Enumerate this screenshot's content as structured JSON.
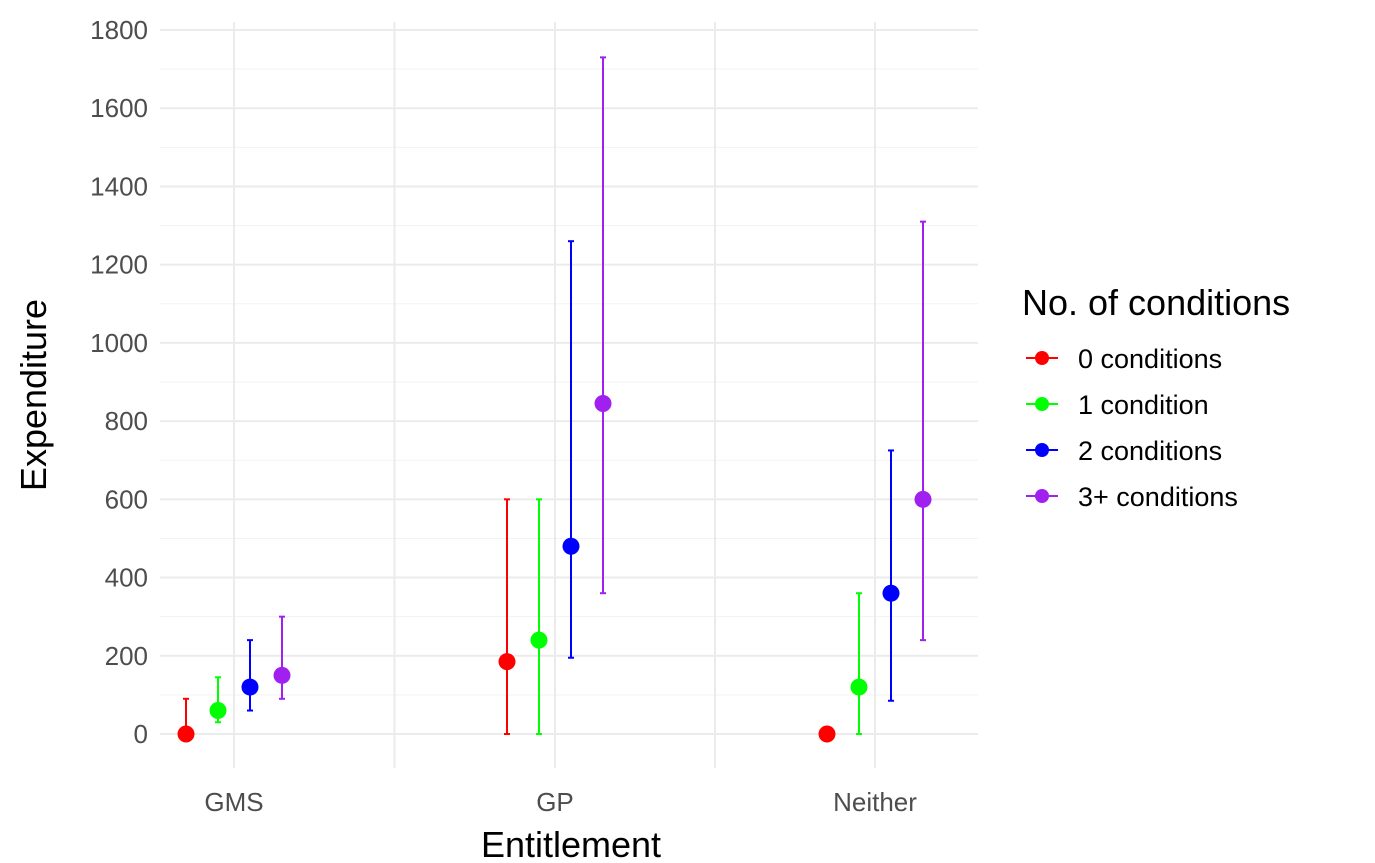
{
  "chart_data": {
    "type": "scatter",
    "subtype": "point-with-errorbars (dodged)",
    "xlabel": "Entitlement",
    "ylabel": "Expenditure",
    "categories": [
      "GMS",
      "GP",
      "Neither"
    ],
    "ylim": [
      -80,
      1800
    ],
    "yticks": [
      0,
      200,
      400,
      600,
      800,
      1000,
      1200,
      1400,
      1600,
      1800
    ],
    "grid": true,
    "legend": {
      "title": "No. of conditions",
      "position": "right"
    },
    "series": [
      {
        "name": "0 conditions",
        "color": "#ff0000",
        "values": [
          0,
          185,
          0
        ],
        "lower": [
          0,
          0,
          0
        ],
        "upper": [
          90,
          600,
          0
        ]
      },
      {
        "name": "1 condition",
        "color": "#00ff00",
        "values": [
          60,
          240,
          120
        ],
        "lower": [
          30,
          0,
          0
        ],
        "upper": [
          145,
          600,
          360
        ]
      },
      {
        "name": "2 conditions",
        "color": "#0000ff",
        "values": [
          120,
          480,
          360
        ],
        "lower": [
          60,
          195,
          85
        ],
        "upper": [
          240,
          1260,
          725
        ]
      },
      {
        "name": "3+ conditions",
        "color": "#a020f0",
        "values": [
          150,
          845,
          600
        ],
        "lower": [
          90,
          360,
          240
        ],
        "upper": [
          300,
          1730,
          1310
        ]
      }
    ]
  }
}
